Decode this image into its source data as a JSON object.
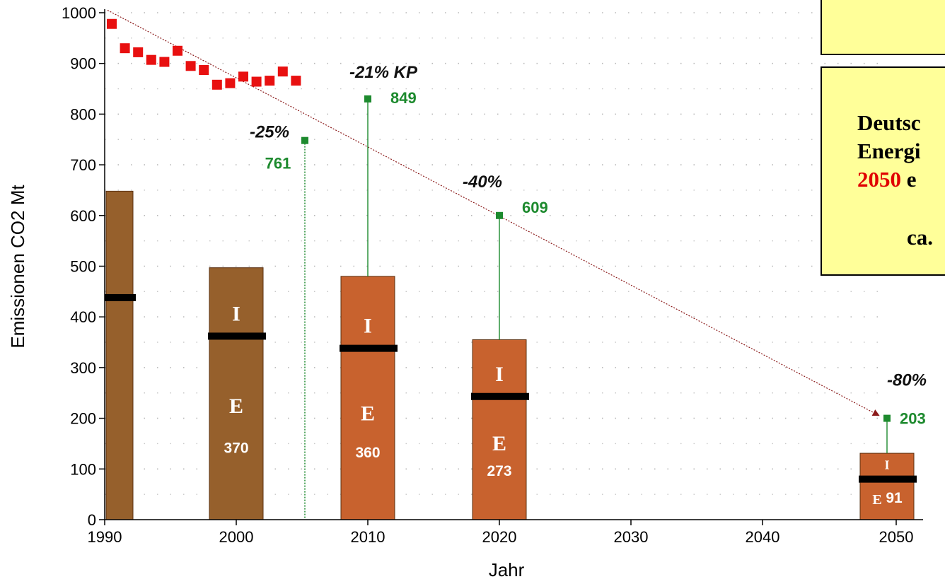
{
  "chart_data": {
    "type": "bar",
    "xlabel": "Jahr",
    "ylabel": "Emissionen CO2 Mt",
    "xlim": [
      1990,
      2052
    ],
    "ylim": [
      0,
      1000
    ],
    "x_ticks": [
      "1990",
      "2000",
      "2010",
      "2020",
      "2030",
      "2040",
      "2050"
    ],
    "y_ticks": [
      "0",
      "100",
      "200",
      "300",
      "400",
      "500",
      "600",
      "700",
      "800",
      "900",
      "1000"
    ],
    "grid": true,
    "colors": {
      "historic_bar": "#96602c",
      "projected_bar": "#c8622e",
      "history_points": "#e81010",
      "targets": "#1d8a2e",
      "trend": "#8b1a1a",
      "note_bg": "#ffff99"
    },
    "history": {
      "x": [
        1990,
        1991,
        1992,
        1993,
        1994,
        1995,
        1996,
        1997,
        1998,
        1999,
        2000,
        2001,
        2002,
        2003,
        2004,
        2005
      ],
      "y": [
        978,
        930,
        922,
        907,
        903,
        925,
        895,
        887,
        858,
        861,
        874,
        864,
        866,
        884,
        866,
        null
      ]
    },
    "bars": [
      {
        "year": 1990,
        "total": 648,
        "divider": 438,
        "upper_label": "",
        "lower_label": "",
        "value_label": ""
      },
      {
        "year": 2000,
        "total": 497,
        "divider": 362,
        "upper_label": "I",
        "lower_label": "E",
        "value_label": "370"
      },
      {
        "year": 2010,
        "total": 480,
        "divider": 338,
        "upper_label": "I",
        "lower_label": "E",
        "value_label": "360"
      },
      {
        "year": 2020,
        "total": 355,
        "divider": 243,
        "upper_label": "I",
        "lower_label": "E",
        "value_label": "273"
      },
      {
        "year": 2050,
        "total": 131,
        "divider": 80,
        "upper_label": "I",
        "lower_label": "E",
        "value_label": "91"
      }
    ],
    "targets": [
      {
        "year": 2005,
        "value": 748,
        "label": "761",
        "pct": "-25%"
      },
      {
        "year": 2010,
        "value": 830,
        "label": "849",
        "pct": "-21% KP"
      },
      {
        "year": 2020,
        "value": 600,
        "label": "609",
        "pct": "-40%"
      },
      {
        "year": 2050,
        "value": 200,
        "label": "203",
        "pct": "-80%"
      }
    ],
    "trend": {
      "x1": 1990,
      "y1": 1005,
      "x2": 2050,
      "y2": 220
    }
  },
  "notes": {
    "box2_lines": [
      "Deutsc",
      "Energi",
      "2050",
      " e",
      "ca."
    ]
  }
}
